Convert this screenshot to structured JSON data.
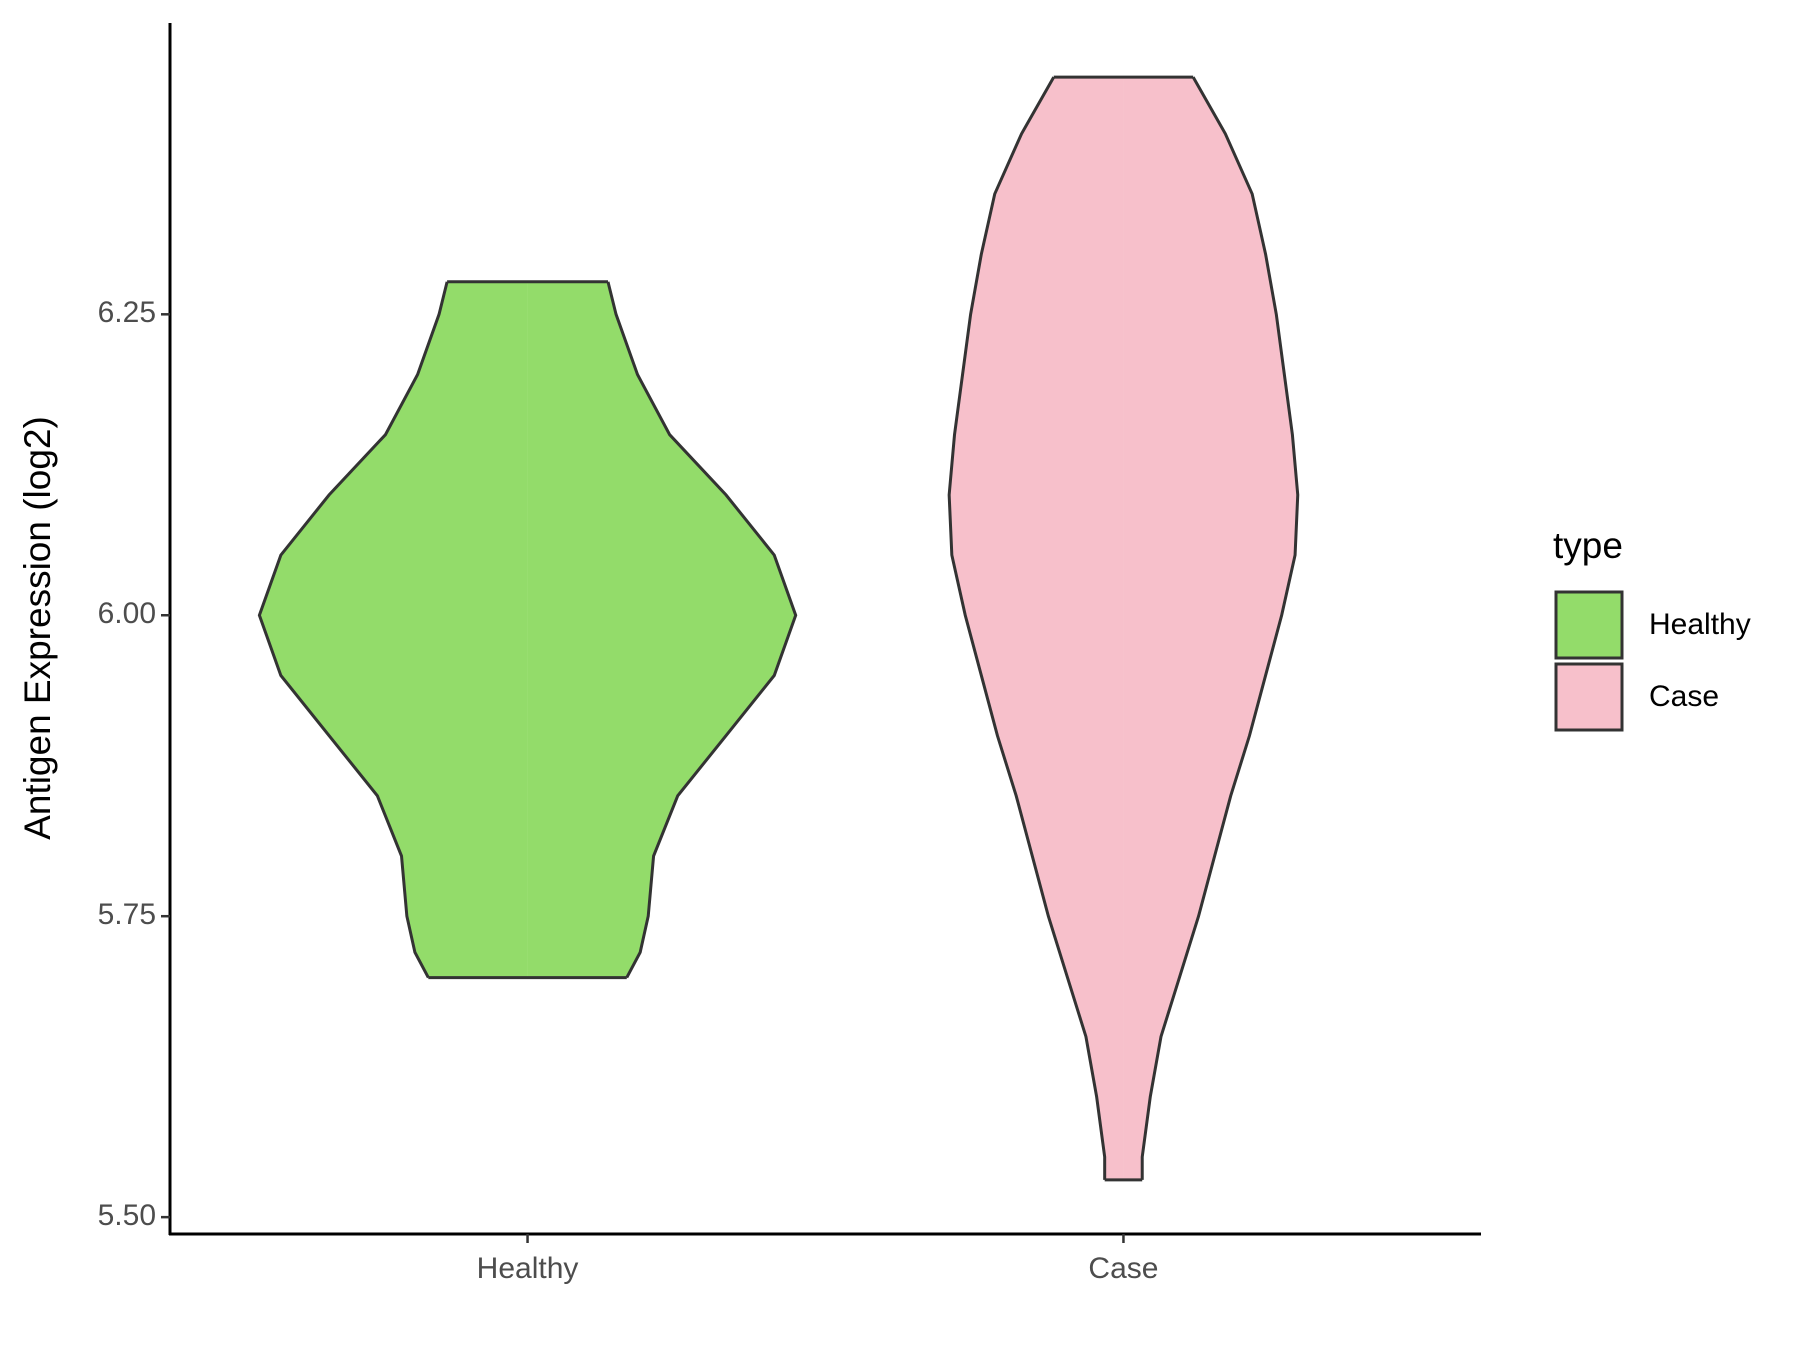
{
  "chart_data": {
    "type": "violin",
    "y_label": "Antigen Expression (log2)",
    "categories": [
      "Healthy",
      "Case"
    ],
    "series": [
      {
        "name": "Healthy",
        "color": "#93dc6a",
        "y": [
          6.277,
          6.25,
          6.2,
          6.15,
          6.1,
          6.05,
          6.0,
          5.95,
          5.9,
          5.85,
          5.8,
          5.75,
          5.72,
          5.699
        ],
        "density": [
          0.3,
          0.33,
          0.41,
          0.53,
          0.74,
          0.92,
          1.0,
          0.92,
          0.74,
          0.56,
          0.47,
          0.45,
          0.42,
          0.37
        ]
      },
      {
        "name": "Case",
        "color": "#f7c0cb",
        "y": [
          6.447,
          6.4,
          6.35,
          6.3,
          6.25,
          6.2,
          6.15,
          6.1,
          6.05,
          6.0,
          5.95,
          5.9,
          5.85,
          5.8,
          5.75,
          5.7,
          5.65,
          5.6,
          5.55,
          5.531
        ],
        "density": [
          0.26,
          0.38,
          0.48,
          0.53,
          0.57,
          0.6,
          0.63,
          0.65,
          0.64,
          0.59,
          0.53,
          0.47,
          0.4,
          0.34,
          0.28,
          0.21,
          0.14,
          0.1,
          0.07,
          0.07
        ]
      }
    ],
    "ylim": [
      5.486,
      6.492
    ],
    "yticks": [
      {
        "value": 5.5,
        "label": "5.50"
      },
      5.75,
      {
        "value": 6,
        "label": "6.00"
      },
      6.25
    ],
    "legend_title": "type",
    "legend": "right"
  }
}
